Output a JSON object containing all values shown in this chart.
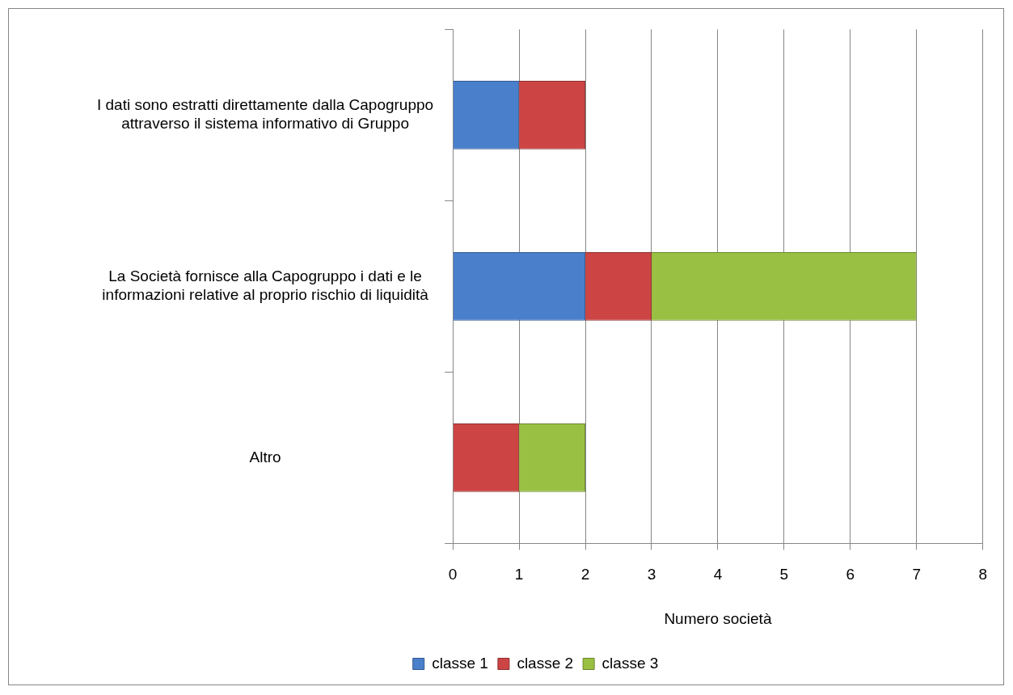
{
  "chart_data": {
    "type": "bar",
    "orientation": "horizontal",
    "stacked": true,
    "categories": [
      "I dati sono estratti direttamente dalla Capogruppo attraverso il sistema informativo di Gruppo",
      "La Società fornisce alla Capogruppo i dati e le informazioni relative al proprio rischio di liquidità",
      "Altro"
    ],
    "series": [
      {
        "name": "classe 1",
        "color": "#4a7fcc",
        "values": [
          1,
          2,
          null
        ]
      },
      {
        "name": "classe 2",
        "color": "#cc4444",
        "values": [
          1,
          1,
          1
        ]
      },
      {
        "name": "classe 3",
        "color": "#99c043",
        "values": [
          null,
          4,
          1
        ]
      }
    ],
    "xlabel": "Numero società",
    "xlim": [
      0,
      8
    ],
    "xticks": [
      0,
      1,
      2,
      3,
      4,
      5,
      6,
      7,
      8
    ],
    "grid": "x",
    "legend": "bottom"
  }
}
